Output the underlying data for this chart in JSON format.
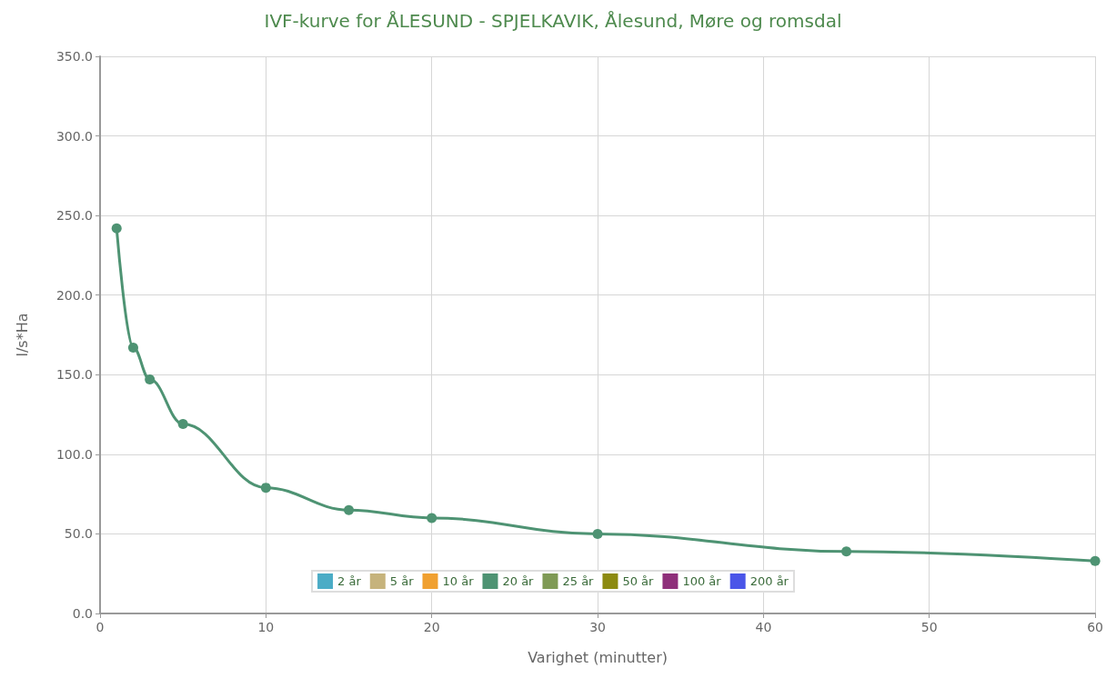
{
  "chart_data": {
    "type": "line",
    "title": "IVF-kurve for ÅLESUND - SPJELKAVIK, Ålesund, Møre og romsdal",
    "xlabel": "Varighet (minutter)",
    "ylabel": "l/s*Ha",
    "x": [
      1,
      2,
      3,
      5,
      10,
      15,
      20,
      30,
      45,
      60
    ],
    "series": [
      {
        "name": "2 år",
        "color": "#4bacc6",
        "values": [
          null,
          null,
          null,
          null,
          null,
          null,
          null,
          null,
          null,
          null
        ]
      },
      {
        "name": "5 år",
        "color": "#c6b37c",
        "values": [
          null,
          null,
          null,
          null,
          null,
          null,
          null,
          null,
          null,
          null
        ]
      },
      {
        "name": "10 år",
        "color": "#f0a030",
        "values": [
          null,
          null,
          null,
          null,
          null,
          null,
          null,
          null,
          null,
          null
        ]
      },
      {
        "name": "20 år",
        "color": "#4e9373",
        "values": [
          242,
          167,
          147,
          119,
          79,
          65,
          60,
          50,
          39,
          33
        ]
      },
      {
        "name": "25 år",
        "color": "#7f9a55",
        "values": [
          null,
          null,
          null,
          null,
          null,
          null,
          null,
          null,
          null,
          null
        ]
      },
      {
        "name": "50 år",
        "color": "#8c8a10",
        "values": [
          null,
          null,
          null,
          null,
          null,
          null,
          null,
          null,
          null,
          null
        ]
      },
      {
        "name": "100 år",
        "color": "#8e2f7a",
        "values": [
          null,
          null,
          null,
          null,
          null,
          null,
          null,
          null,
          null,
          null
        ]
      },
      {
        "name": "200 år",
        "color": "#4a55e8",
        "values": [
          null,
          null,
          null,
          null,
          null,
          null,
          null,
          null,
          null,
          null
        ]
      }
    ],
    "xlim": [
      0,
      60
    ],
    "xticks": [
      0,
      10,
      20,
      30,
      40,
      50,
      60
    ],
    "ylim": [
      0,
      350
    ],
    "yticks": [
      {
        "value": 0,
        "label": "0.0"
      },
      {
        "value": 50,
        "label": "50.0"
      },
      {
        "value": 100,
        "label": "100.0"
      },
      {
        "value": 150,
        "label": "150.0"
      },
      {
        "value": 200,
        "label": "200.0"
      },
      {
        "value": 250,
        "label": "250.0"
      },
      {
        "value": 300,
        "label": "300.0"
      },
      {
        "value": 350,
        "label": "350.0"
      }
    ],
    "grid": true,
    "legend": "bottom",
    "marker": "circle",
    "line_style": "solid"
  }
}
